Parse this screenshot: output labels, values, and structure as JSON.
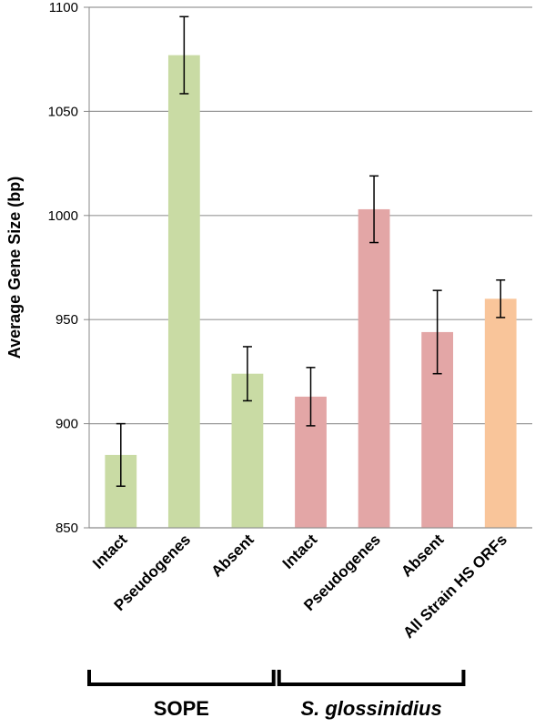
{
  "chart_data": {
    "type": "bar",
    "y_label": "Average Gene Size (bp)",
    "categories": [
      "Intact",
      "Pseudogenes",
      "Absent",
      "Intact",
      "Pseudogenes",
      "Absent",
      "All Strain HS ORFs"
    ],
    "values": [
      885,
      1077,
      924,
      913,
      1003,
      944,
      960
    ],
    "errors": [
      15,
      18.5,
      13,
      14,
      16,
      20,
      9
    ],
    "colors": [
      "#c9dba4",
      "#c9dba4",
      "#c9dba4",
      "#e3a6a6",
      "#e3a6a6",
      "#e3a6a6",
      "#f9c59a"
    ],
    "ylim": [
      850,
      1100
    ],
    "yticks": [
      850,
      900,
      950,
      1000,
      1050,
      1100
    ],
    "grid": true,
    "groups": [
      "SOPE",
      "S. glossinidius"
    ]
  }
}
